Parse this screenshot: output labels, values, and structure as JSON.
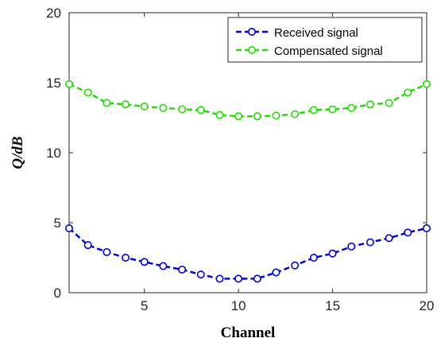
{
  "chart_data": {
    "type": "line",
    "xlabel": "Channel",
    "ylabel": "Q/dB",
    "xlim": [
      1,
      20
    ],
    "ylim": [
      0,
      20
    ],
    "xticks": [
      5,
      10,
      15,
      20
    ],
    "yticks": [
      0,
      5,
      10,
      15,
      20
    ],
    "grid": false,
    "legend_position": "top-right",
    "x": [
      1,
      2,
      3,
      4,
      5,
      6,
      7,
      8,
      9,
      10,
      11,
      12,
      13,
      14,
      15,
      16,
      17,
      18,
      19,
      20
    ],
    "series": [
      {
        "name": "Received signal",
        "color": "#0000cc",
        "line_style": "dashed",
        "marker": "circle",
        "values": [
          4.6,
          3.4,
          2.9,
          2.5,
          2.2,
          1.9,
          1.65,
          1.3,
          1.0,
          1.0,
          1.0,
          1.45,
          1.95,
          2.5,
          2.8,
          3.3,
          3.6,
          3.9,
          4.3,
          4.6
        ]
      },
      {
        "name": "Compensated signal",
        "color": "#22dd00",
        "line_style": "dashed",
        "marker": "circle",
        "values": [
          14.9,
          14.3,
          13.55,
          13.45,
          13.3,
          13.2,
          13.1,
          13.05,
          12.7,
          12.6,
          12.6,
          12.65,
          12.75,
          13.05,
          13.1,
          13.2,
          13.45,
          13.55,
          14.3,
          14.9
        ]
      }
    ]
  }
}
